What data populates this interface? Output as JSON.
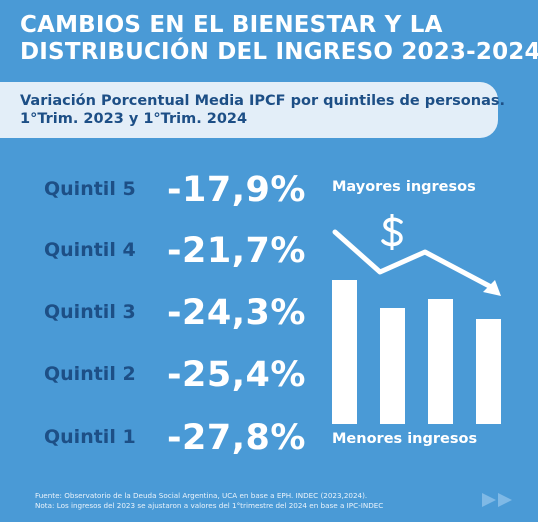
{
  "title": {
    "line1": "CAMBIOS EN EL BIENESTAR Y LA",
    "line2": "DISTRIBUCIÓN DEL INGRESO 2023-2024"
  },
  "subtitle": {
    "line1": "Variación Porcentual Media IPCF por quintiles de personas.",
    "line2": "1°Trim. 2023 y 1°Trim. 2024"
  },
  "legend": {
    "top": "Mayores ingresos",
    "bottom": "Menores ingresos"
  },
  "source": {
    "line1": "Fuente: Observatorio de la Deuda Social Argentina, UCA en base a EPH. INDEC (2023,2024).",
    "line2": "Nota: Los ingresos del 2023 se ajustaron a valores del 1°trimestre del 2024 en base a IPC-INDEC"
  },
  "icons": {
    "dollar": "dollar-sign-icon",
    "trend": "downtrend-arrow-icon",
    "next": "fast-forward-icon"
  },
  "colors": {
    "background": "#4a9ad6",
    "label": "#1d4f86",
    "bars": "#ffffff"
  },
  "chart_data": {
    "type": "table",
    "categories": [
      "Quintil 5",
      "Quintil 4",
      "Quintil 3",
      "Quintil 2",
      "Quintil 1"
    ],
    "values": [
      -17.9,
      -21.7,
      -24.3,
      -25.4,
      -27.8
    ],
    "value_labels": [
      "-17,9%",
      "-21,7%",
      "-24,3%",
      "-25,4%",
      "-27,8%"
    ]
  }
}
